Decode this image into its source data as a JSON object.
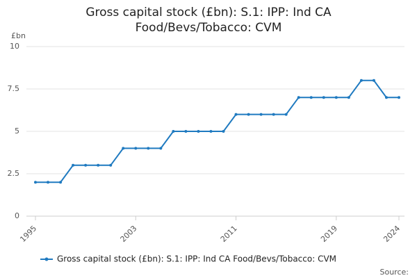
{
  "chart_data": {
    "type": "line",
    "title": "Gross capital stock (£bn): S.1: IPP: Ind CA",
    "subtitle": "Food/Bevs/Tobacco: CVM",
    "y_label": "£bn",
    "source": "Source:",
    "x": [
      1995,
      1996,
      1997,
      1998,
      1999,
      2000,
      2001,
      2002,
      2003,
      2004,
      2005,
      2006,
      2007,
      2008,
      2009,
      2010,
      2011,
      2012,
      2013,
      2014,
      2015,
      2016,
      2017,
      2018,
      2019,
      2020,
      2021,
      2022,
      2023,
      2024
    ],
    "series": [
      {
        "name": "Gross capital stock (£bn): S.1: IPP: Ind CA Food/Bevs/Tobacco: CVM",
        "color": "#1f7ac0",
        "values": [
          2,
          2,
          2,
          3,
          3,
          3,
          3,
          4,
          4,
          4,
          4,
          5,
          5,
          5,
          5,
          5,
          6,
          6,
          6,
          6,
          6,
          7,
          7,
          7,
          7,
          7,
          8,
          8,
          7,
          7
        ]
      }
    ],
    "xlim": [
      1995,
      2024
    ],
    "xticks": [
      1995,
      2003,
      2011,
      2019,
      2024
    ],
    "ylim": [
      0,
      10
    ],
    "yticks": [
      0,
      2.5,
      5,
      7.5,
      10
    ],
    "grid": true,
    "legend": "bottom"
  }
}
